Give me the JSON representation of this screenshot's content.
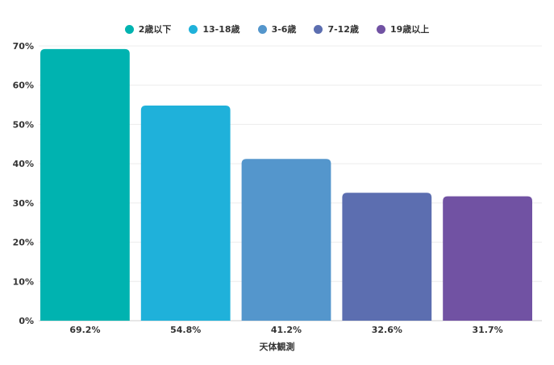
{
  "chart_data": {
    "type": "bar",
    "xlabel": "天体観測",
    "ylabel": "",
    "ylim": [
      0,
      70
    ],
    "yticks": [
      "0%",
      "10%",
      "20%",
      "30%",
      "40%",
      "50%",
      "60%",
      "70%"
    ],
    "grid": true,
    "legend_position": "top",
    "series": [
      {
        "name": "2歳以下",
        "value": 69.2,
        "label": "69.2%",
        "color": "#00b3b0"
      },
      {
        "name": "13-18歳",
        "value": 54.8,
        "label": "54.8%",
        "color": "#1fb1da"
      },
      {
        "name": "3-6歳",
        "value": 41.2,
        "label": "41.2%",
        "color": "#5496cc"
      },
      {
        "name": "7-12歳",
        "value": 32.6,
        "label": "32.6%",
        "color": "#5c6eb0"
      },
      {
        "name": "19歳以上",
        "value": 31.7,
        "label": "31.7%",
        "color": "#7152a3"
      }
    ]
  }
}
